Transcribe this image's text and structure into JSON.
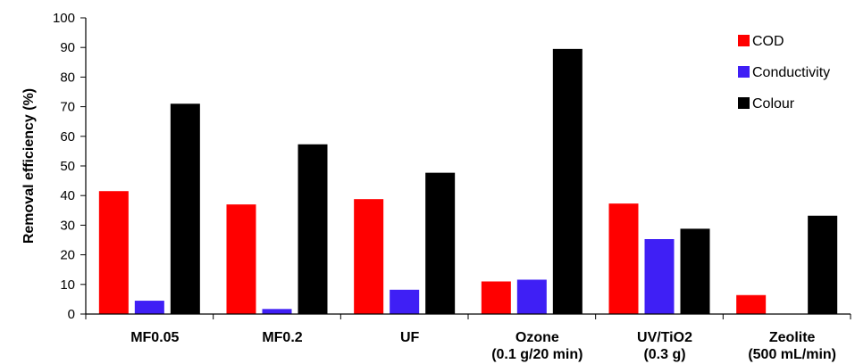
{
  "chart_data": {
    "type": "bar",
    "title": "",
    "xlabel": "",
    "ylabel": "Removal efficiency (%)",
    "ylim": [
      0,
      100
    ],
    "yticks": [
      0,
      10,
      20,
      30,
      40,
      50,
      60,
      70,
      80,
      90,
      100
    ],
    "grid": false,
    "legend_position": "top-right",
    "categories": [
      [
        "MF0.05"
      ],
      [
        "MF0.2"
      ],
      [
        "UF"
      ],
      [
        "Ozone",
        "(0.1 g/20 min)"
      ],
      [
        "UV/TiO2",
        "(0.3 g)"
      ],
      [
        "Zeolite",
        "(500 mL/min)"
      ]
    ],
    "series": [
      {
        "name": "COD",
        "color": "#ff0000",
        "values": [
          41.5,
          37,
          38.8,
          11,
          37.3,
          6.4
        ]
      },
      {
        "name": "Conductivity",
        "color": "#3f1ff5",
        "values": [
          4.5,
          1.7,
          8.2,
          11.6,
          25.3,
          0
        ]
      },
      {
        "name": "Colour",
        "color": "#000000",
        "values": [
          71,
          57.3,
          47.7,
          89.5,
          28.8,
          33.2
        ]
      }
    ]
  }
}
